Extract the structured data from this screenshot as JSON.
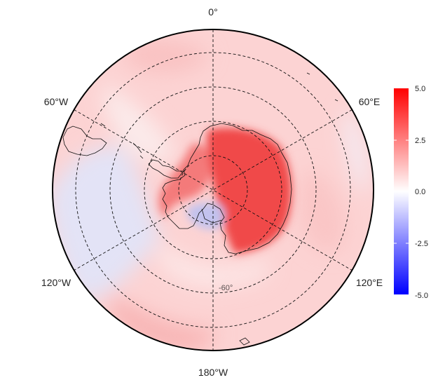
{
  "map": {
    "projection": "south-polar-stereographic",
    "longitude_labels": {
      "top": "0°",
      "upper_left": "60°W",
      "upper_right": "60°E",
      "lower_left": "120°W",
      "lower_right": "120°E",
      "bottom": "180°W"
    },
    "faint_latitude_label": "-60°",
    "latitude_circles": 4,
    "meridian_count": 6,
    "grid_style": "dashed"
  },
  "colorbar": {
    "ticks": [
      "5.0",
      "2.5",
      "0.0",
      "-2.5",
      "-5.0"
    ],
    "min": -5.0,
    "max": 5.0,
    "colors": {
      "low": "#0000ff",
      "mid": "#ffffff",
      "high": "#ff0000"
    }
  },
  "field_regions": [
    {
      "region": "east-antarctic-interior",
      "value": 3.6
    },
    {
      "region": "west-antarctic-peninsula",
      "value": 2.3
    },
    {
      "region": "ross-sea-ice-shelf",
      "value": -1.8
    },
    {
      "region": "weddell-sea",
      "value": 0.4
    },
    {
      "region": "indian-ocean-sector",
      "value": 1.2
    },
    {
      "region": "pacific-sector-180",
      "value": 1.6
    },
    {
      "region": "amundsen-bellingshausen-outer",
      "value": -0.9
    },
    {
      "region": "south-atlantic-outer",
      "value": 1.3
    }
  ]
}
